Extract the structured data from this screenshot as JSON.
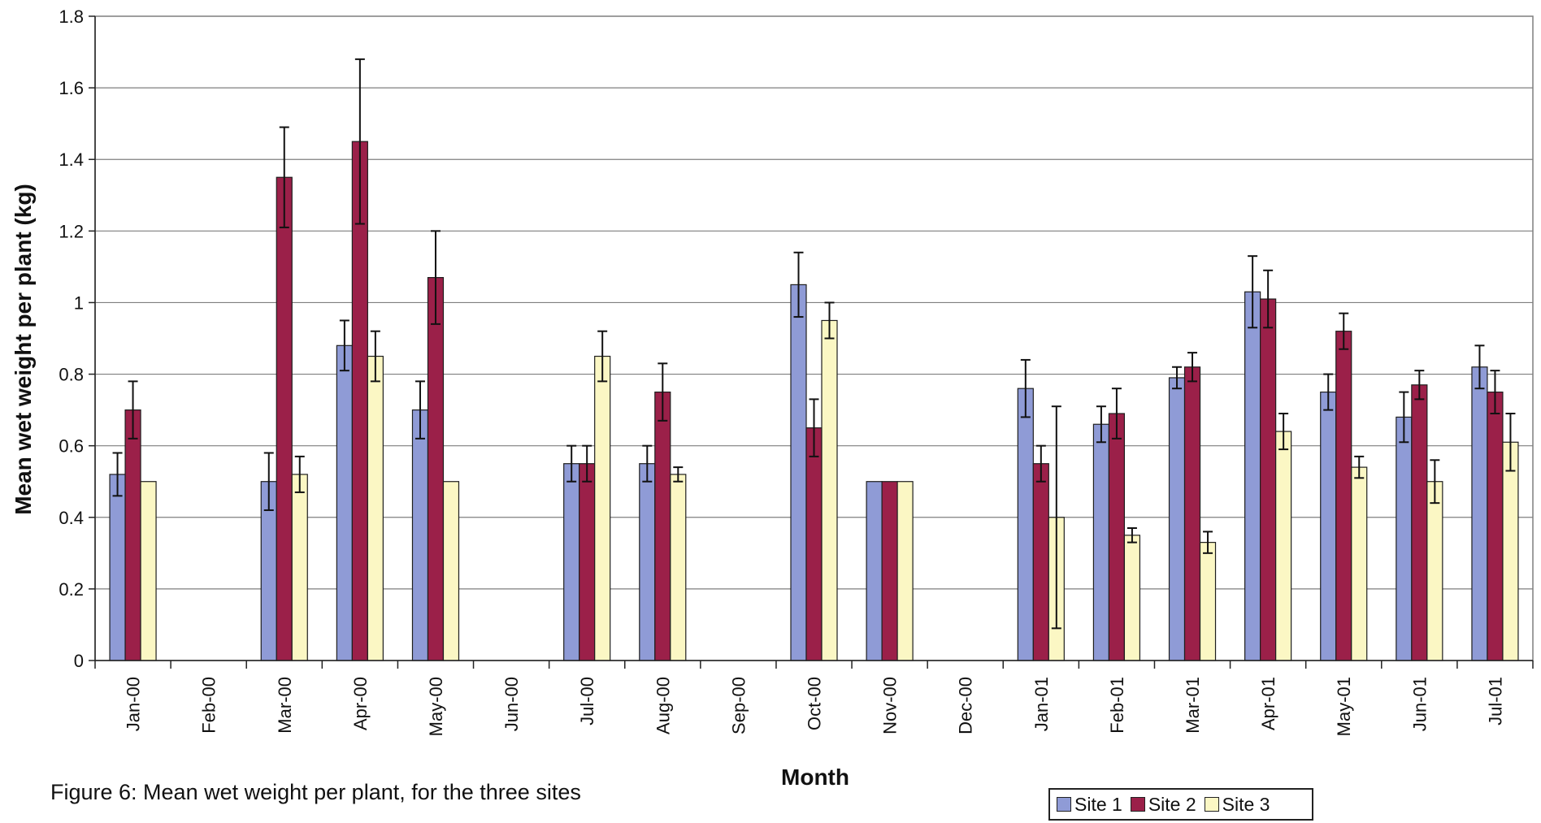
{
  "caption": "Figure 6: Mean wet weight per plant, for the three sites",
  "colors": {
    "site1": "#8f9bd6",
    "site2": "#9b2049",
    "site3": "#fbf7c4",
    "grid": "#7f7f7f",
    "frame": "#7f7f7f",
    "error_bar": "#111111"
  },
  "chart_data": {
    "type": "bar",
    "xlabel": "Month",
    "ylabel": "Mean wet weight per plant (kg)",
    "ylim": [
      0,
      1.8
    ],
    "yticks": [
      "0",
      "0.2",
      "0.4",
      "0.6",
      "0.8",
      "1",
      "1.2",
      "1.4",
      "1.6",
      "1.8"
    ],
    "grid": true,
    "legend_position": "bottom-right",
    "categories": [
      "Jan-00",
      "Feb-00",
      "Mar-00",
      "Apr-00",
      "May-00",
      "Jun-00",
      "Jul-00",
      "Aug-00",
      "Sep-00",
      "Oct-00",
      "Nov-00",
      "Dec-00",
      "Jan-01",
      "Feb-01",
      "Mar-01",
      "Apr-01",
      "May-01",
      "Jun-01",
      "Jul-01"
    ],
    "series": [
      {
        "name": "Site 1",
        "color": "#8f9bd6",
        "values": [
          0.52,
          null,
          0.5,
          0.88,
          0.7,
          null,
          0.55,
          0.55,
          null,
          1.05,
          0.5,
          null,
          0.76,
          0.66,
          0.79,
          1.03,
          0.75,
          0.68,
          0.82
        ],
        "errors": [
          0.06,
          null,
          0.08,
          0.07,
          0.08,
          null,
          0.05,
          0.05,
          null,
          0.09,
          0,
          null,
          0.08,
          0.05,
          0.03,
          0.1,
          0.05,
          0.07,
          0.06
        ]
      },
      {
        "name": "Site 2",
        "color": "#9b2049",
        "values": [
          0.7,
          null,
          1.35,
          1.45,
          1.07,
          null,
          0.55,
          0.75,
          null,
          0.65,
          0.5,
          null,
          0.55,
          0.69,
          0.82,
          1.01,
          0.92,
          0.77,
          0.75
        ],
        "errors": [
          0.08,
          null,
          0.14,
          0.23,
          0.13,
          null,
          0.05,
          0.08,
          null,
          0.08,
          0,
          null,
          0.05,
          0.07,
          0.04,
          0.08,
          0.05,
          0.04,
          0.06
        ]
      },
      {
        "name": "Site 3",
        "color": "#fbf7c4",
        "values": [
          0.5,
          null,
          0.52,
          0.85,
          0.5,
          null,
          0.85,
          0.52,
          null,
          0.95,
          0.5,
          null,
          0.4,
          0.35,
          0.33,
          0.64,
          0.54,
          0.5,
          0.61
        ],
        "errors": [
          0,
          null,
          0.05,
          0.07,
          0,
          null,
          0.07,
          0.02,
          null,
          0.05,
          0,
          null,
          0.31,
          0.02,
          0.03,
          0.05,
          0.03,
          0.06,
          0.08
        ]
      }
    ]
  }
}
